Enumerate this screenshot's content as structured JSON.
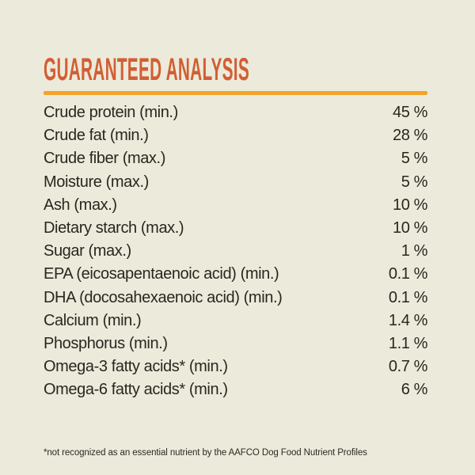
{
  "page": {
    "background_color": "#ECEADB",
    "title": "GUARANTEED ANALYSIS",
    "title_color": "#D25E33",
    "rule_color": "#F3A428",
    "text_color": "#28271F"
  },
  "analysis": {
    "rows": [
      {
        "label": "Crude protein (min.)",
        "value": "45 %"
      },
      {
        "label": "Crude fat (min.)",
        "value": "28 %"
      },
      {
        "label": "Crude fiber (max.)",
        "value": "5 %"
      },
      {
        "label": "Moisture (max.)",
        "value": "5 %"
      },
      {
        "label": "Ash (max.)",
        "value": "10 %"
      },
      {
        "label": "Dietary starch (max.)",
        "value": "10 %"
      },
      {
        "label": "Sugar (max.)",
        "value": "1 %"
      },
      {
        "label": "EPA (eicosapentaenoic acid) (min.)",
        "value": "0.1 %"
      },
      {
        "label": "DHA (docosahexaenoic acid) (min.)",
        "value": "0.1 %"
      },
      {
        "label": "Calcium (min.)",
        "value": "1.4 %"
      },
      {
        "label": "Phosphorus (min.)",
        "value": "1.1 %"
      },
      {
        "label": "Omega-3 fatty acids* (min.)",
        "value": "0.7 %"
      },
      {
        "label": "Omega-6 fatty acids* (min.)",
        "value": "6 %"
      }
    ]
  },
  "footnote": "*not recognized as an essential nutrient by the AAFCO Dog Food Nutrient Profiles"
}
